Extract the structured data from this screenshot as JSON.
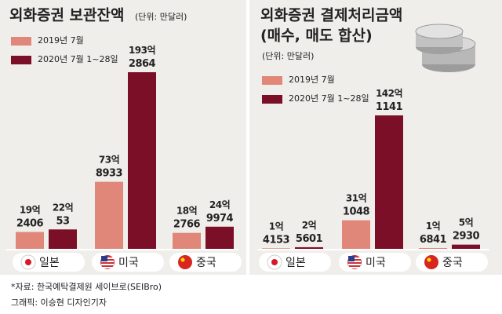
{
  "chart_data": [
    {
      "type": "bar",
      "title": "외화증권 보관잔액",
      "unit_note": "(단위: 만달러)",
      "categories": [
        "일본",
        "미국",
        "중국"
      ],
      "series": [
        {
          "name": "2019년 7월",
          "color": "#e0877a",
          "values": [
            192406,
            738933,
            182766
          ],
          "value_labels": [
            "19억 2406",
            "73억 8933",
            "18억 2766"
          ]
        },
        {
          "name": "2020년 7월 1~28일",
          "color": "#7b0f27",
          "values": [
            220053,
            1932864,
            249974
          ],
          "value_labels": [
            "22억 53",
            "193억 2864",
            "24억 9974"
          ]
        }
      ]
    },
    {
      "type": "bar",
      "title": "외화증권 결제처리금액",
      "subtitle": "(매수, 매도 합산)",
      "unit_note": "(단위: 만달러)",
      "categories": [
        "일본",
        "미국",
        "중국"
      ],
      "series": [
        {
          "name": "2019년 7월",
          "color": "#e0877a",
          "values": [
            14153,
            311048,
            16841
          ],
          "value_labels": [
            "1억 4153",
            "31억 1048",
            "1억 6841"
          ]
        },
        {
          "name": "2020년 7월 1~28일",
          "color": "#7b0f27",
          "values": [
            25601,
            1421141,
            52930
          ],
          "value_labels": [
            "2억 5601",
            "142억 1141",
            "5억 2930"
          ]
        }
      ]
    }
  ],
  "footer": {
    "source": "*자료: 한국예탁결제원 세이브로(SEIBro)",
    "credit": "그래픽: 이승현 디자인기자"
  }
}
